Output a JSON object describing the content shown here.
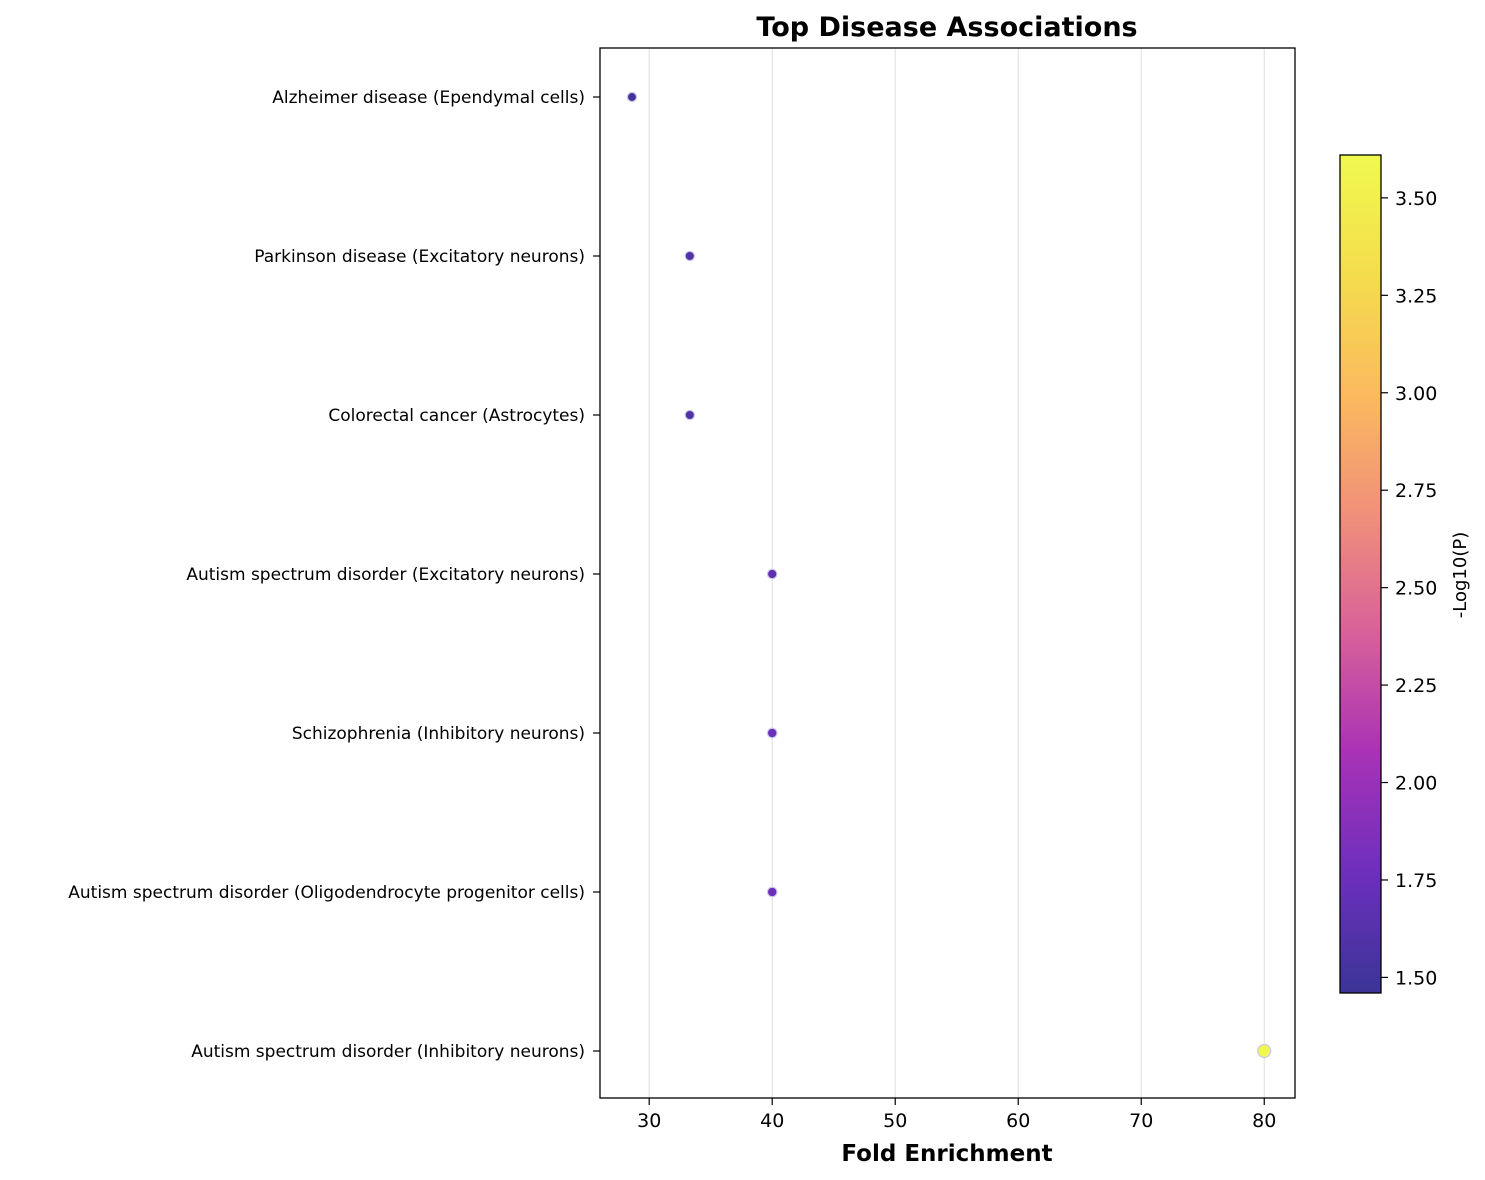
{
  "chart_data": {
    "type": "scatter",
    "title": "Top Disease Associations",
    "xlabel": "Fold Enrichment",
    "ylabel": "",
    "xlim": [
      26,
      82.5
    ],
    "xticks": [
      30,
      40,
      50,
      60,
      70,
      80
    ],
    "grid": "x-axis only",
    "categories": [
      "Alzheimer disease (Ependymal cells)",
      "Parkinson disease (Excitatory neurons)",
      "Colorectal cancer (Astrocytes)",
      "Autism spectrum disorder (Excitatory neurons)",
      "Schizophrenia (Inhibitory neurons)",
      "Autism spectrum disorder (Oligodendrocyte progenitor cells)",
      "Autism spectrum disorder (Inhibitory neurons)"
    ],
    "points": [
      {
        "category": "Alzheimer disease (Ependymal cells)",
        "fold_enrichment": 28.6,
        "neg_log10_p": 1.52
      },
      {
        "category": "Parkinson disease (Excitatory neurons)",
        "fold_enrichment": 33.3,
        "neg_log10_p": 1.6
      },
      {
        "category": "Colorectal cancer (Astrocytes)",
        "fold_enrichment": 33.3,
        "neg_log10_p": 1.6
      },
      {
        "category": "Autism spectrum disorder (Excitatory neurons)",
        "fold_enrichment": 40,
        "neg_log10_p": 1.68
      },
      {
        "category": "Schizophrenia (Inhibitory neurons)",
        "fold_enrichment": 40,
        "neg_log10_p": 1.75
      },
      {
        "category": "Autism spectrum disorder (Oligodendrocyte progenitor cells)",
        "fold_enrichment": 40,
        "neg_log10_p": 1.75
      },
      {
        "category": "Autism spectrum disorder (Inhibitory neurons)",
        "fold_enrichment": 80,
        "neg_log10_p": 3.6
      }
    ],
    "colorbar": {
      "label": "-Log10(P)",
      "range": [
        1.46,
        3.61
      ],
      "ticks": [
        1.5,
        1.75,
        2.0,
        2.25,
        2.5,
        2.75,
        3.0,
        3.25,
        3.5
      ],
      "tick_labels": [
        "1.50",
        "1.75",
        "2.00",
        "2.25",
        "2.50",
        "2.75",
        "3.00",
        "3.25",
        "3.50"
      ],
      "colormap": "plasma",
      "stops": [
        "#3b3596",
        "#6d2fbd",
        "#a832b6",
        "#d8609a",
        "#f0907a",
        "#fbba5e",
        "#f4dd4c",
        "#f0f94f"
      ]
    }
  }
}
